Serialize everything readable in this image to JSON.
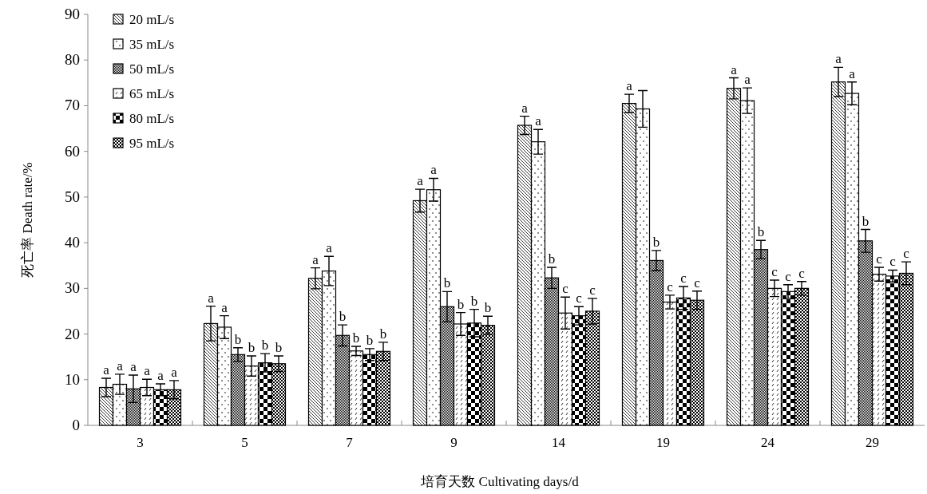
{
  "chart_data": {
    "type": "bar",
    "xlabel": "培育天数 Cultivating days/d",
    "ylabel": "死亡率 Death rate/%",
    "categories": [
      "3",
      "5",
      "7",
      "9",
      "14",
      "19",
      "24",
      "29"
    ],
    "ylim": [
      0,
      90
    ],
    "yticks": [
      0,
      10,
      20,
      30,
      40,
      50,
      60,
      70,
      80,
      90
    ],
    "legend": "top left",
    "series": [
      {
        "name": "20 mL/s",
        "color": "#000000",
        "values": [
          8.3,
          22.3,
          32.2,
          49.2,
          65.7,
          70.5,
          73.8,
          75.2
        ],
        "errors": [
          2,
          3.8,
          2.3,
          2.5,
          2,
          2,
          2.3,
          3.2
        ],
        "value_labels": [
          "a",
          "a",
          "a",
          "a",
          "a",
          "a",
          "a",
          "a"
        ]
      },
      {
        "name": "35 mL/s",
        "color": "#000000",
        "values": [
          9,
          21.5,
          33.8,
          51.6,
          62.1,
          69.3,
          71.1,
          72.7
        ],
        "errors": [
          2.2,
          2.5,
          3.2,
          2.5,
          2.7,
          4,
          2.8,
          2.5
        ],
        "value_labels": [
          "a",
          "a",
          "a",
          "a",
          "a",
          null,
          "a",
          "a"
        ]
      },
      {
        "name": "50 mL/s",
        "color": "#000000",
        "values": [
          8,
          15.5,
          19.7,
          26,
          32.3,
          36.1,
          38.5,
          40.4
        ],
        "errors": [
          3,
          1.5,
          2.3,
          3.3,
          2.3,
          2.2,
          2,
          2.5
        ],
        "value_labels": [
          "a",
          "b",
          "b",
          "b",
          "b",
          "b",
          "b",
          "b"
        ]
      },
      {
        "name": "65 mL/s",
        "color": "#000000",
        "values": [
          8.3,
          13,
          16.3,
          22.2,
          24.6,
          27,
          30,
          33.1
        ],
        "errors": [
          1.8,
          2.2,
          1,
          2.5,
          3.5,
          1.5,
          1.8,
          1.5
        ],
        "value_labels": [
          "a",
          "b",
          "b",
          "b",
          "c",
          "c",
          "c",
          "c"
        ]
      },
      {
        "name": "80 mL/s",
        "color": "#000000",
        "values": [
          7.8,
          13.7,
          15.5,
          22.4,
          24,
          27.9,
          29.3,
          32.7
        ],
        "errors": [
          1.3,
          2,
          1.3,
          3,
          2,
          2.5,
          1.5,
          1.3
        ],
        "value_labels": [
          "a",
          "b",
          "b",
          "b",
          "c",
          "c",
          "c",
          "c"
        ]
      },
      {
        "name": "95 mL/s",
        "color": "#000000",
        "values": [
          7.8,
          13.5,
          16.2,
          21.9,
          25,
          27.4,
          30,
          33.3
        ],
        "errors": [
          2,
          1.7,
          2,
          2,
          2.8,
          2,
          1.5,
          2.5
        ],
        "value_labels": [
          "a",
          "b",
          "b",
          "b",
          "c",
          "c",
          "c",
          "c"
        ]
      }
    ]
  }
}
